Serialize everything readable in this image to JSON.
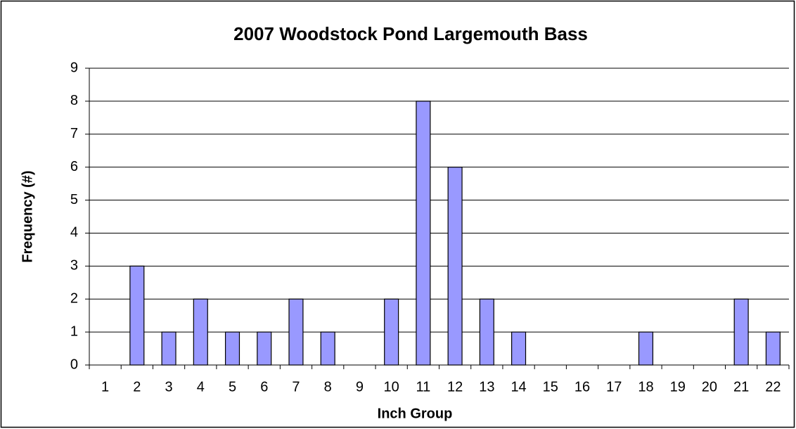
{
  "chart_data": {
    "type": "bar",
    "title": "2007 Woodstock Pond Largemouth Bass",
    "x_label": "Inch Group",
    "y_label": "Frequency (#)",
    "categories": [
      "1",
      "2",
      "3",
      "4",
      "5",
      "6",
      "7",
      "8",
      "9",
      "10",
      "11",
      "12",
      "13",
      "14",
      "15",
      "16",
      "17",
      "18",
      "19",
      "20",
      "21",
      "22"
    ],
    "values": [
      0,
      3,
      1,
      2,
      1,
      1,
      2,
      1,
      0,
      2,
      8,
      6,
      2,
      1,
      0,
      0,
      0,
      1,
      0,
      0,
      2,
      1
    ],
    "color": "#9999ff",
    "ylim": [
      0,
      9
    ],
    "yticks": [
      0,
      1,
      2,
      3,
      4,
      5,
      6,
      7,
      8,
      9
    ],
    "grid": true
  }
}
